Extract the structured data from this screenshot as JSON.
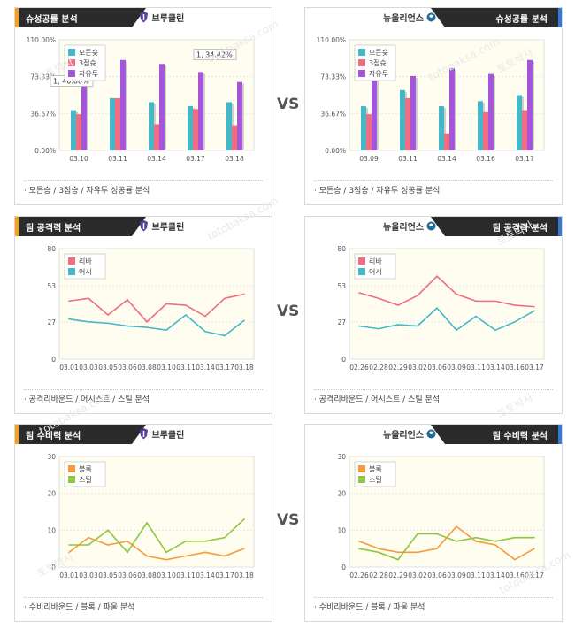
{
  "vs_label": "VS",
  "footers": {
    "score": "모든승 / 3점승 / 자유투 성공률 분석",
    "attack": "공격리바운드 / 어시스트 / 스틸 분석",
    "defense": "수비리바운드 / 블록 / 파울 분석"
  },
  "watermarks": [
    "토토박사",
    "totobaksa.com"
  ],
  "colors": {
    "header_bg": "#2b2b2b",
    "left_accent": "#f6a01a",
    "right_accent": "#2f79d9",
    "plot_bg": "#fffdf0"
  },
  "panels": [
    {
      "id": "p1",
      "side": "left",
      "header": "슈성공률 분석",
      "team": "브루클린",
      "team_icon": "brooklyn-logo-icon",
      "footer_key": "score"
    },
    {
      "id": "p2",
      "side": "right",
      "header": "슈성공률 분석",
      "team": "뉴올리언스",
      "team_icon": "new-orleans-logo-icon",
      "footer_key": "score"
    },
    {
      "id": "p3",
      "side": "left",
      "header": "팀 공격력 분석",
      "team": "브루클린",
      "team_icon": "brooklyn-logo-icon",
      "footer_key": "attack"
    },
    {
      "id": "p4",
      "side": "right",
      "header": "팀 공격력 분석",
      "team": "뉴올리언스",
      "team_icon": "new-orleans-logo-icon",
      "footer_key": "attack"
    },
    {
      "id": "p5",
      "side": "left",
      "header": "팀 수비력 분석",
      "team": "브루클린",
      "team_icon": "brooklyn-logo-icon",
      "footer_key": "defense"
    },
    {
      "id": "p6",
      "side": "right",
      "header": "팀 수비력 분석",
      "team": "뉴올리언스",
      "team_icon": "new-orleans-logo-icon",
      "footer_key": "defense"
    }
  ],
  "chart_data": [
    {
      "id": "p1",
      "type": "bar",
      "categories": [
        "03.10",
        "03.11",
        "03.14",
        "03.17",
        "03.18"
      ],
      "ylim": [
        0,
        110
      ],
      "yticks": [
        "0.00%",
        "36.67%",
        "73.33%",
        "110.00%"
      ],
      "ytick_values": [
        0,
        36.67,
        73.33,
        110
      ],
      "legend": [
        "모든슛",
        "3점슛",
        "자유투"
      ],
      "legend_position": "top-left",
      "series": [
        {
          "name": "모든슛",
          "color": "#45b8c8",
          "values": [
            40,
            52,
            48,
            44,
            48
          ]
        },
        {
          "name": "3점슛",
          "color": "#ef6d7e",
          "values": [
            36,
            52,
            26,
            41,
            25
          ]
        },
        {
          "name": "자유투",
          "color": "#a555d8",
          "values": [
            96,
            90,
            86,
            78,
            68
          ]
        }
      ],
      "annotations": [
        {
          "text": "1, 40.00%",
          "at": "03.10"
        },
        {
          "text": "1, 34.42%",
          "at": "03.18"
        }
      ]
    },
    {
      "id": "p2",
      "type": "bar",
      "categories": [
        "03.09",
        "03.11",
        "03.14",
        "03.16",
        "03.17"
      ],
      "ylim": [
        0,
        110
      ],
      "yticks": [
        "0.00%",
        "36.67%",
        "73.33%",
        "110.00%"
      ],
      "ytick_values": [
        0,
        36.67,
        73.33,
        110
      ],
      "legend": [
        "모든슛",
        "3점슛",
        "자유투"
      ],
      "legend_position": "top-left",
      "series": [
        {
          "name": "모든슛",
          "color": "#45b8c8",
          "values": [
            44,
            60,
            44,
            49,
            55
          ]
        },
        {
          "name": "3점슛",
          "color": "#ef6d7e",
          "values": [
            36,
            52,
            17,
            38,
            40
          ]
        },
        {
          "name": "자유투",
          "color": "#a555d8",
          "values": [
            78,
            74,
            82,
            76,
            90
          ]
        }
      ]
    },
    {
      "id": "p3",
      "type": "line",
      "categories": [
        "03.01",
        "03.03",
        "03.05",
        "03.06",
        "03.08",
        "03.10",
        "03.11",
        "03.14",
        "03.17",
        "03.18"
      ],
      "ylim": [
        0,
        80
      ],
      "yticks": [
        "0",
        "27",
        "53",
        "80"
      ],
      "ytick_values": [
        0,
        27,
        53,
        80
      ],
      "legend": [
        "리바",
        "어시"
      ],
      "legend_position": "top-left",
      "series": [
        {
          "name": "리바",
          "color": "#ef6d7e",
          "values": [
            42,
            44,
            32,
            43,
            27,
            40,
            39,
            31,
            44,
            47
          ]
        },
        {
          "name": "어시",
          "color": "#45b8c8",
          "values": [
            29,
            27,
            26,
            24,
            23,
            21,
            32,
            20,
            17,
            28
          ]
        }
      ]
    },
    {
      "id": "p4",
      "type": "line",
      "categories": [
        "02.26",
        "02.28",
        "02.29",
        "03.02",
        "03.06",
        "03.09",
        "03.11",
        "03.14",
        "03.16",
        "03.17"
      ],
      "ylim": [
        0,
        80
      ],
      "yticks": [
        "0",
        "27",
        "53",
        "80"
      ],
      "ytick_values": [
        0,
        27,
        53,
        80
      ],
      "legend": [
        "리바",
        "어시"
      ],
      "legend_position": "top-left",
      "series": [
        {
          "name": "리바",
          "color": "#ef6d7e",
          "values": [
            48,
            44,
            39,
            46,
            60,
            47,
            42,
            42,
            39,
            38
          ]
        },
        {
          "name": "어시",
          "color": "#45b8c8",
          "values": [
            24,
            22,
            25,
            24,
            37,
            21,
            31,
            21,
            27,
            35
          ]
        }
      ]
    },
    {
      "id": "p5",
      "type": "line",
      "categories": [
        "03.01",
        "03.03",
        "03.05",
        "03.06",
        "03.08",
        "03.10",
        "03.11",
        "03.14",
        "03.17",
        "03.18"
      ],
      "ylim": [
        0,
        30
      ],
      "yticks": [
        "0",
        "10",
        "20",
        "30"
      ],
      "ytick_values": [
        0,
        10,
        20,
        30
      ],
      "legend": [
        "블록",
        "스틸"
      ],
      "legend_position": "top-left",
      "series": [
        {
          "name": "블록",
          "color": "#f79a3c",
          "values": [
            4,
            8,
            6,
            7,
            3,
            2,
            3,
            4,
            3,
            5
          ]
        },
        {
          "name": "스틸",
          "color": "#8dc63f",
          "values": [
            6,
            6,
            10,
            4,
            12,
            4,
            7,
            7,
            8,
            13
          ]
        }
      ]
    },
    {
      "id": "p6",
      "type": "line",
      "categories": [
        "02.26",
        "02.28",
        "02.29",
        "03.02",
        "03.06",
        "03.09",
        "03.11",
        "03.14",
        "03.16",
        "03.17"
      ],
      "ylim": [
        0,
        30
      ],
      "yticks": [
        "0",
        "10",
        "20",
        "30"
      ],
      "ytick_values": [
        0,
        10,
        20,
        30
      ],
      "legend": [
        "블록",
        "스틸"
      ],
      "legend_position": "top-left",
      "series": [
        {
          "name": "블록",
          "color": "#f79a3c",
          "values": [
            7,
            5,
            4,
            4,
            5,
            11,
            7,
            6,
            2,
            5
          ]
        },
        {
          "name": "스틸",
          "color": "#8dc63f",
          "values": [
            5,
            4,
            2,
            9,
            9,
            7,
            8,
            7,
            8,
            8
          ]
        }
      ]
    }
  ]
}
